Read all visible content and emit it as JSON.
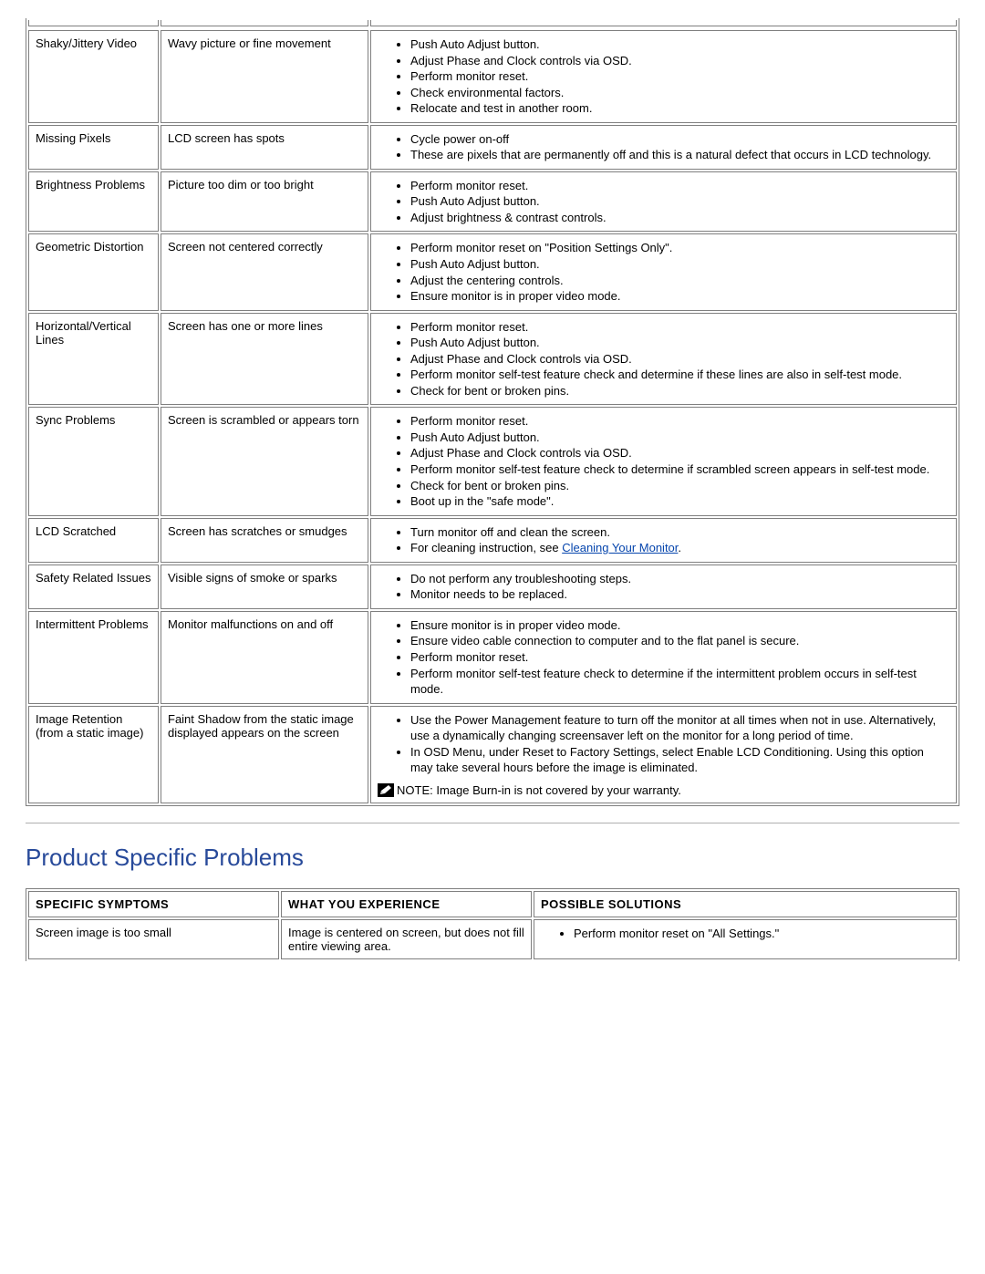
{
  "colors": {
    "heading": "#284a9a",
    "link": "#0645ad",
    "border": "#7f7f7f",
    "text": "#000000",
    "bg": "#ffffff"
  },
  "section_heading": "Product Specific Problems",
  "table1": {
    "rows": [
      {
        "symptom": "Shaky/Jittery Video",
        "experience": "Wavy picture or fine movement",
        "solutions": [
          "Push Auto Adjust button.",
          "Adjust Phase and Clock controls via OSD.",
          "Perform monitor reset.",
          "Check environmental factors.",
          "Relocate and test in another room."
        ]
      },
      {
        "symptom": "Missing Pixels",
        "experience": "LCD screen has spots",
        "solutions": [
          "Cycle power on-off",
          "These are pixels that are permanently off and this is a natural defect that occurs in LCD technology."
        ]
      },
      {
        "symptom": "Brightness Problems",
        "experience": "Picture too dim or too bright",
        "solutions": [
          "Perform monitor reset.",
          "Push Auto Adjust button.",
          "Adjust brightness & contrast controls."
        ]
      },
      {
        "symptom": "Geometric Distortion",
        "experience": "Screen not centered correctly",
        "solutions": [
          "Perform monitor reset on \"Position Settings Only\".",
          "Push Auto Adjust button.",
          "Adjust the centering controls.",
          "Ensure monitor is in proper video mode."
        ]
      },
      {
        "symptom": "Horizontal/Vertical Lines",
        "experience": "Screen has one or more lines",
        "solutions": [
          "Perform monitor reset.",
          "Push Auto Adjust button.",
          "Adjust Phase and Clock controls via OSD.",
          "Perform monitor self-test feature check and determine if these lines are also in self-test mode.",
          "Check for bent or broken pins."
        ]
      },
      {
        "symptom": "Sync Problems",
        "experience": "Screen is scrambled or appears torn",
        "solutions": [
          "Perform monitor reset.",
          "Push Auto Adjust button.",
          "Adjust Phase and Clock controls via OSD.",
          "Perform monitor self-test feature check to determine if scrambled screen appears in self-test mode.",
          "Check for bent or broken pins.",
          "Boot up in the \"safe mode\"."
        ]
      },
      {
        "symptom": "LCD Scratched",
        "experience": "Screen has scratches or smudges",
        "solutions_special": [
          {
            "text": "Turn monitor off and clean the screen."
          },
          {
            "prefix": "For cleaning instruction, see ",
            "link_text": "Cleaning Your Monitor",
            "suffix": "."
          }
        ]
      },
      {
        "symptom": "Safety Related Issues",
        "experience": "Visible signs of smoke or sparks",
        "solutions": [
          "Do not perform any troubleshooting steps.",
          "Monitor needs to be replaced."
        ]
      },
      {
        "symptom": "Intermittent Problems",
        "experience": "Monitor malfunctions on and off",
        "solutions": [
          "Ensure monitor is in proper video mode.",
          "Ensure video cable connection to computer and to the flat panel is secure.",
          "Perform monitor reset.",
          "Perform monitor self-test feature check to determine if the intermittent problem occurs in self-test mode."
        ]
      },
      {
        "symptom": "Image Retention (from a static image)",
        "experience": "Faint Shadow from the static image displayed appears on the screen",
        "solutions": [
          "Use the Power Management feature to turn off the monitor at all times when not in use. Alternatively, use a dynamically changing screensaver left on the monitor for a long period of time.",
          "In OSD Menu, under Reset to Factory Settings, select Enable LCD Conditioning. Using this option may take several hours before the image is eliminated."
        ],
        "note": "NOTE: Image Burn-in is not covered by your warranty."
      }
    ]
  },
  "table2": {
    "headers": [
      "SPECIFIC SYMPTOMS",
      "WHAT YOU EXPERIENCE",
      "POSSIBLE SOLUTIONS"
    ],
    "rows": [
      {
        "symptom": "Screen image is too small",
        "experience": "Image is centered on screen, but does not fill entire viewing area.",
        "solutions": [
          "Perform monitor reset on \"All Settings.\""
        ]
      }
    ]
  }
}
